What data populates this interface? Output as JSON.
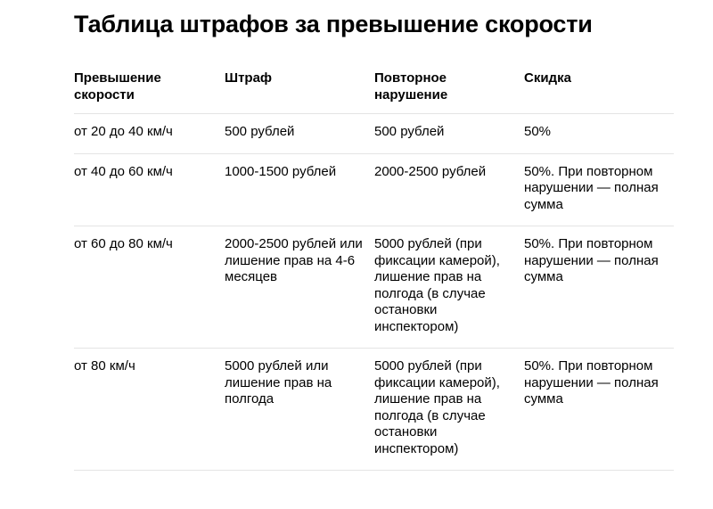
{
  "title": "Таблица штрафов за превышение скорости",
  "table": {
    "headers": [
      "Превышение скорости",
      "Штраф",
      "Повторное нарушение",
      "Скидка"
    ],
    "rows": [
      [
        "от 20 до 40 км/ч",
        "500 рублей",
        "500 рублей",
        "50%"
      ],
      [
        "от 40 до 60 км/ч",
        "1000-1500 рублей",
        "2000-2500 рублей",
        "50%. При повторном нарушении — полная сумма"
      ],
      [
        "от 60 до 80 км/ч",
        "2000-2500 рублей или лишение прав на 4-6 месяцев",
        "5000 рублей (при фиксации камерой), лишение прав на полгода (в случае остановки инспектором)",
        "50%. При повторном нарушении — полная сумма"
      ],
      [
        "от 80 км/ч",
        "5000 рублей или лишение прав на полгода",
        "5000 рублей (при фиксации камерой), лишение прав на полгода (в случае остановки инспектором)",
        "50%. При повторном нарушении — полная сумма"
      ]
    ]
  }
}
